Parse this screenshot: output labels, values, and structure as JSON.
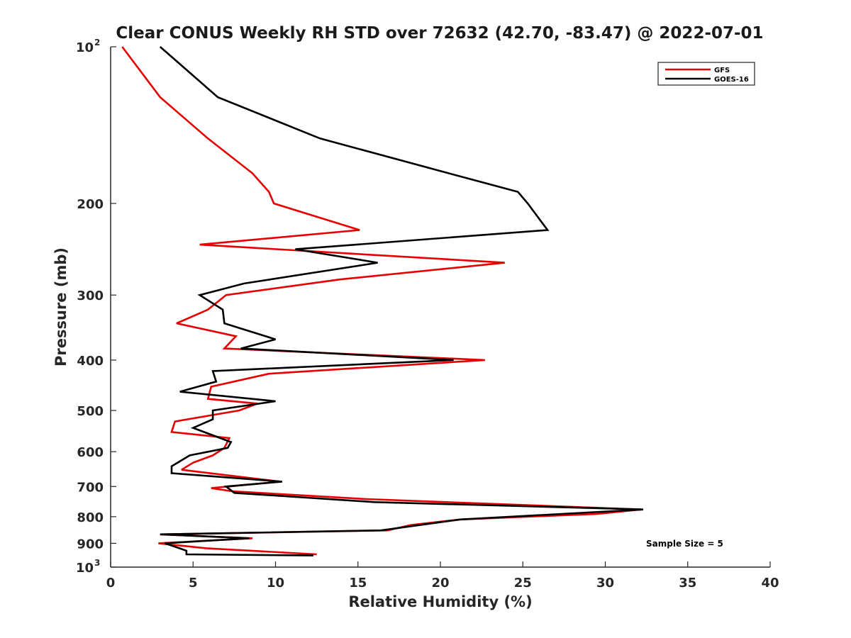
{
  "chart_data": {
    "type": "line",
    "title": "Clear CONUS Weekly RH STD over 72632 (42.70, -83.47) @ 2022-07-01",
    "xlabel": "Relative Humidity (%)",
    "ylabel": "Pressure (mb)",
    "xlim": [
      0,
      40
    ],
    "ylim": [
      100,
      1000
    ],
    "y_scale": "log",
    "y_reversed": true,
    "x_ticks": [
      "0",
      "5",
      "10",
      "15",
      "20",
      "25",
      "30",
      "35",
      "40"
    ],
    "y_ticks": [
      {
        "value": 100,
        "base": "10",
        "exp": "2"
      },
      {
        "value": 200,
        "label": "200"
      },
      {
        "value": 300,
        "label": "300"
      },
      {
        "value": 400,
        "label": "400"
      },
      {
        "value": 500,
        "label": "500"
      },
      {
        "value": 600,
        "label": "600"
      },
      {
        "value": 700,
        "label": "700"
      },
      {
        "value": 800,
        "label": "800"
      },
      {
        "value": 900,
        "label": "900"
      },
      {
        "value": 1000,
        "base": "10",
        "exp": "3"
      }
    ],
    "legend_position": "top-right",
    "annotation": "Sample Size = 5",
    "series": [
      {
        "name": "GFS",
        "color": "#e60000",
        "points": [
          [
            0.7,
            100
          ],
          [
            3.0,
            125
          ],
          [
            5.9,
            150
          ],
          [
            8.6,
            175
          ],
          [
            9.6,
            190
          ],
          [
            9.9,
            200
          ],
          [
            15.1,
            225
          ],
          [
            5.4,
            240
          ],
          [
            23.9,
            260
          ],
          [
            13.9,
            280
          ],
          [
            7.0,
            300
          ],
          [
            5.9,
            320
          ],
          [
            4.0,
            340
          ],
          [
            7.6,
            360
          ],
          [
            6.9,
            380
          ],
          [
            22.7,
            400
          ],
          [
            9.6,
            425
          ],
          [
            6.1,
            450
          ],
          [
            5.9,
            475
          ],
          [
            8.9,
            485
          ],
          [
            7.8,
            500
          ],
          [
            3.9,
            525
          ],
          [
            3.7,
            550
          ],
          [
            7.2,
            565
          ],
          [
            6.9,
            590
          ],
          [
            6.2,
            610
          ],
          [
            5.0,
            630
          ],
          [
            4.3,
            650
          ],
          [
            10.3,
            685
          ],
          [
            6.1,
            705
          ],
          [
            7.4,
            715
          ],
          [
            15.5,
            740
          ],
          [
            32.2,
            775
          ],
          [
            29.5,
            790
          ],
          [
            21.2,
            810
          ],
          [
            18.2,
            830
          ],
          [
            16.8,
            850
          ],
          [
            3.0,
            865
          ],
          [
            8.6,
            880
          ],
          [
            2.9,
            900
          ],
          [
            5.8,
            920
          ],
          [
            12.5,
            945
          ]
        ]
      },
      {
        "name": "GOES-16",
        "color": "#000000",
        "points": [
          [
            3.0,
            100
          ],
          [
            6.5,
            125
          ],
          [
            12.7,
            150
          ],
          [
            20.5,
            175
          ],
          [
            24.7,
            190
          ],
          [
            25.3,
            200
          ],
          [
            26.5,
            225
          ],
          [
            11.2,
            245
          ],
          [
            16.2,
            260
          ],
          [
            8.1,
            285
          ],
          [
            5.4,
            300
          ],
          [
            6.8,
            320
          ],
          [
            6.9,
            340
          ],
          [
            10.0,
            365
          ],
          [
            7.9,
            380
          ],
          [
            20.8,
            400
          ],
          [
            6.2,
            420
          ],
          [
            6.4,
            440
          ],
          [
            4.2,
            460
          ],
          [
            10.0,
            480
          ],
          [
            6.2,
            500
          ],
          [
            6.2,
            520
          ],
          [
            5.0,
            540
          ],
          [
            7.3,
            575
          ],
          [
            7.1,
            590
          ],
          [
            4.8,
            610
          ],
          [
            3.7,
            640
          ],
          [
            3.7,
            660
          ],
          [
            10.4,
            685
          ],
          [
            7.0,
            700
          ],
          [
            7.5,
            720
          ],
          [
            16.0,
            750
          ],
          [
            32.3,
            775
          ],
          [
            21.2,
            810
          ],
          [
            16.4,
            850
          ],
          [
            3.0,
            865
          ],
          [
            8.4,
            880
          ],
          [
            3.3,
            900
          ],
          [
            4.6,
            930
          ],
          [
            4.6,
            945
          ],
          [
            12.3,
            950
          ]
        ]
      }
    ]
  }
}
